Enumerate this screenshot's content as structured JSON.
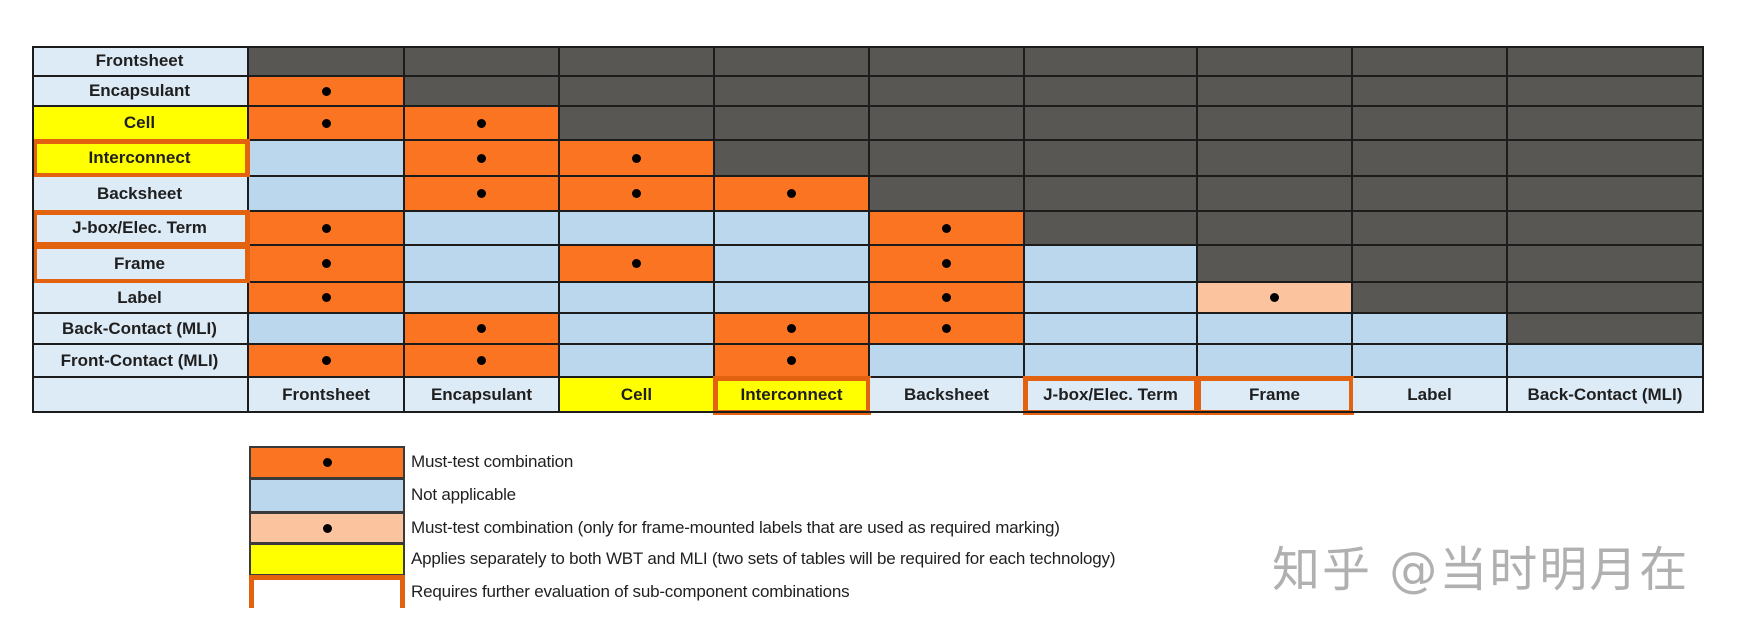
{
  "row_labels": [
    "Frontsheet",
    "Encapsulant",
    "Cell",
    "Interconnect",
    "Backsheet",
    "J-box/Elec. Term",
    "Frame",
    "Label",
    "Back-Contact (MLI)",
    "Front-Contact (MLI)"
  ],
  "column_labels": [
    "Frontsheet",
    "Encapsulant",
    "Cell",
    "Interconnect",
    "Backsheet",
    "J-box/Elec. Term",
    "Frame",
    "Label",
    "Back-Contact (MLI)"
  ],
  "matrix": [
    [
      "d",
      "d",
      "d",
      "d",
      "d",
      "d",
      "d",
      "d",
      "d"
    ],
    [
      "o",
      "d",
      "d",
      "d",
      "d",
      "d",
      "d",
      "d",
      "d"
    ],
    [
      "o",
      "o",
      "d",
      "d",
      "d",
      "d",
      "d",
      "d",
      "d"
    ],
    [
      "b",
      "o",
      "o",
      "d",
      "d",
      "d",
      "d",
      "d",
      "d"
    ],
    [
      "b",
      "o",
      "o",
      "o",
      "d",
      "d",
      "d",
      "d",
      "d"
    ],
    [
      "o",
      "b",
      "b",
      "b",
      "o",
      "d",
      "d",
      "d",
      "d"
    ],
    [
      "o",
      "b",
      "o",
      "b",
      "o",
      "b",
      "d",
      "d",
      "d"
    ],
    [
      "o",
      "b",
      "b",
      "b",
      "o",
      "b",
      "p",
      "d",
      "d"
    ],
    [
      "b",
      "o",
      "b",
      "o",
      "o",
      "b",
      "b",
      "b",
      "d"
    ],
    [
      "o",
      "o",
      "b",
      "o",
      "b",
      "b",
      "b",
      "b",
      "b"
    ]
  ],
  "cell_types": {
    "o": {
      "meaning": "Must-test combination",
      "color": "#fb7421",
      "dot": true
    },
    "b": {
      "meaning": "Not applicable",
      "color": "#bbd7ed",
      "dot": false
    },
    "p": {
      "meaning": "Must-test combination (only for frame-mounted labels that are used as required marking)",
      "color": "#fcc49e",
      "dot": true
    },
    "d": {
      "meaning": "Not used (upper triangle)",
      "color": "#595754",
      "dot": false
    }
  },
  "yellow_labels": [
    "Cell",
    "Interconnect"
  ],
  "outlined_labels": [
    "Interconnect",
    "J-box/Elec. Term",
    "Frame"
  ],
  "colors": {
    "must_test": "#fb7421",
    "not_applicable": "#bbd7ed",
    "must_test_label": "#fcc49e",
    "wbt_mli": "#ffff00",
    "further_eval_outline": "#e2620f",
    "upper_triangle": "#595754",
    "label_bg": "#ddebf7"
  },
  "legend": [
    {
      "swatch": "o",
      "text": "Must-test combination"
    },
    {
      "swatch": "b",
      "text": "Not applicable"
    },
    {
      "swatch": "p",
      "text": "Must-test combination (only for frame-mounted labels that are used as required marking)"
    },
    {
      "swatch": "y",
      "text": "Applies separately to both WBT and MLI (two sets of tables will be required for each technology)"
    },
    {
      "swatch": "outline",
      "text": "Requires further evaluation of sub-component combinations"
    }
  ],
  "watermark": "知乎 @当时明月在"
}
